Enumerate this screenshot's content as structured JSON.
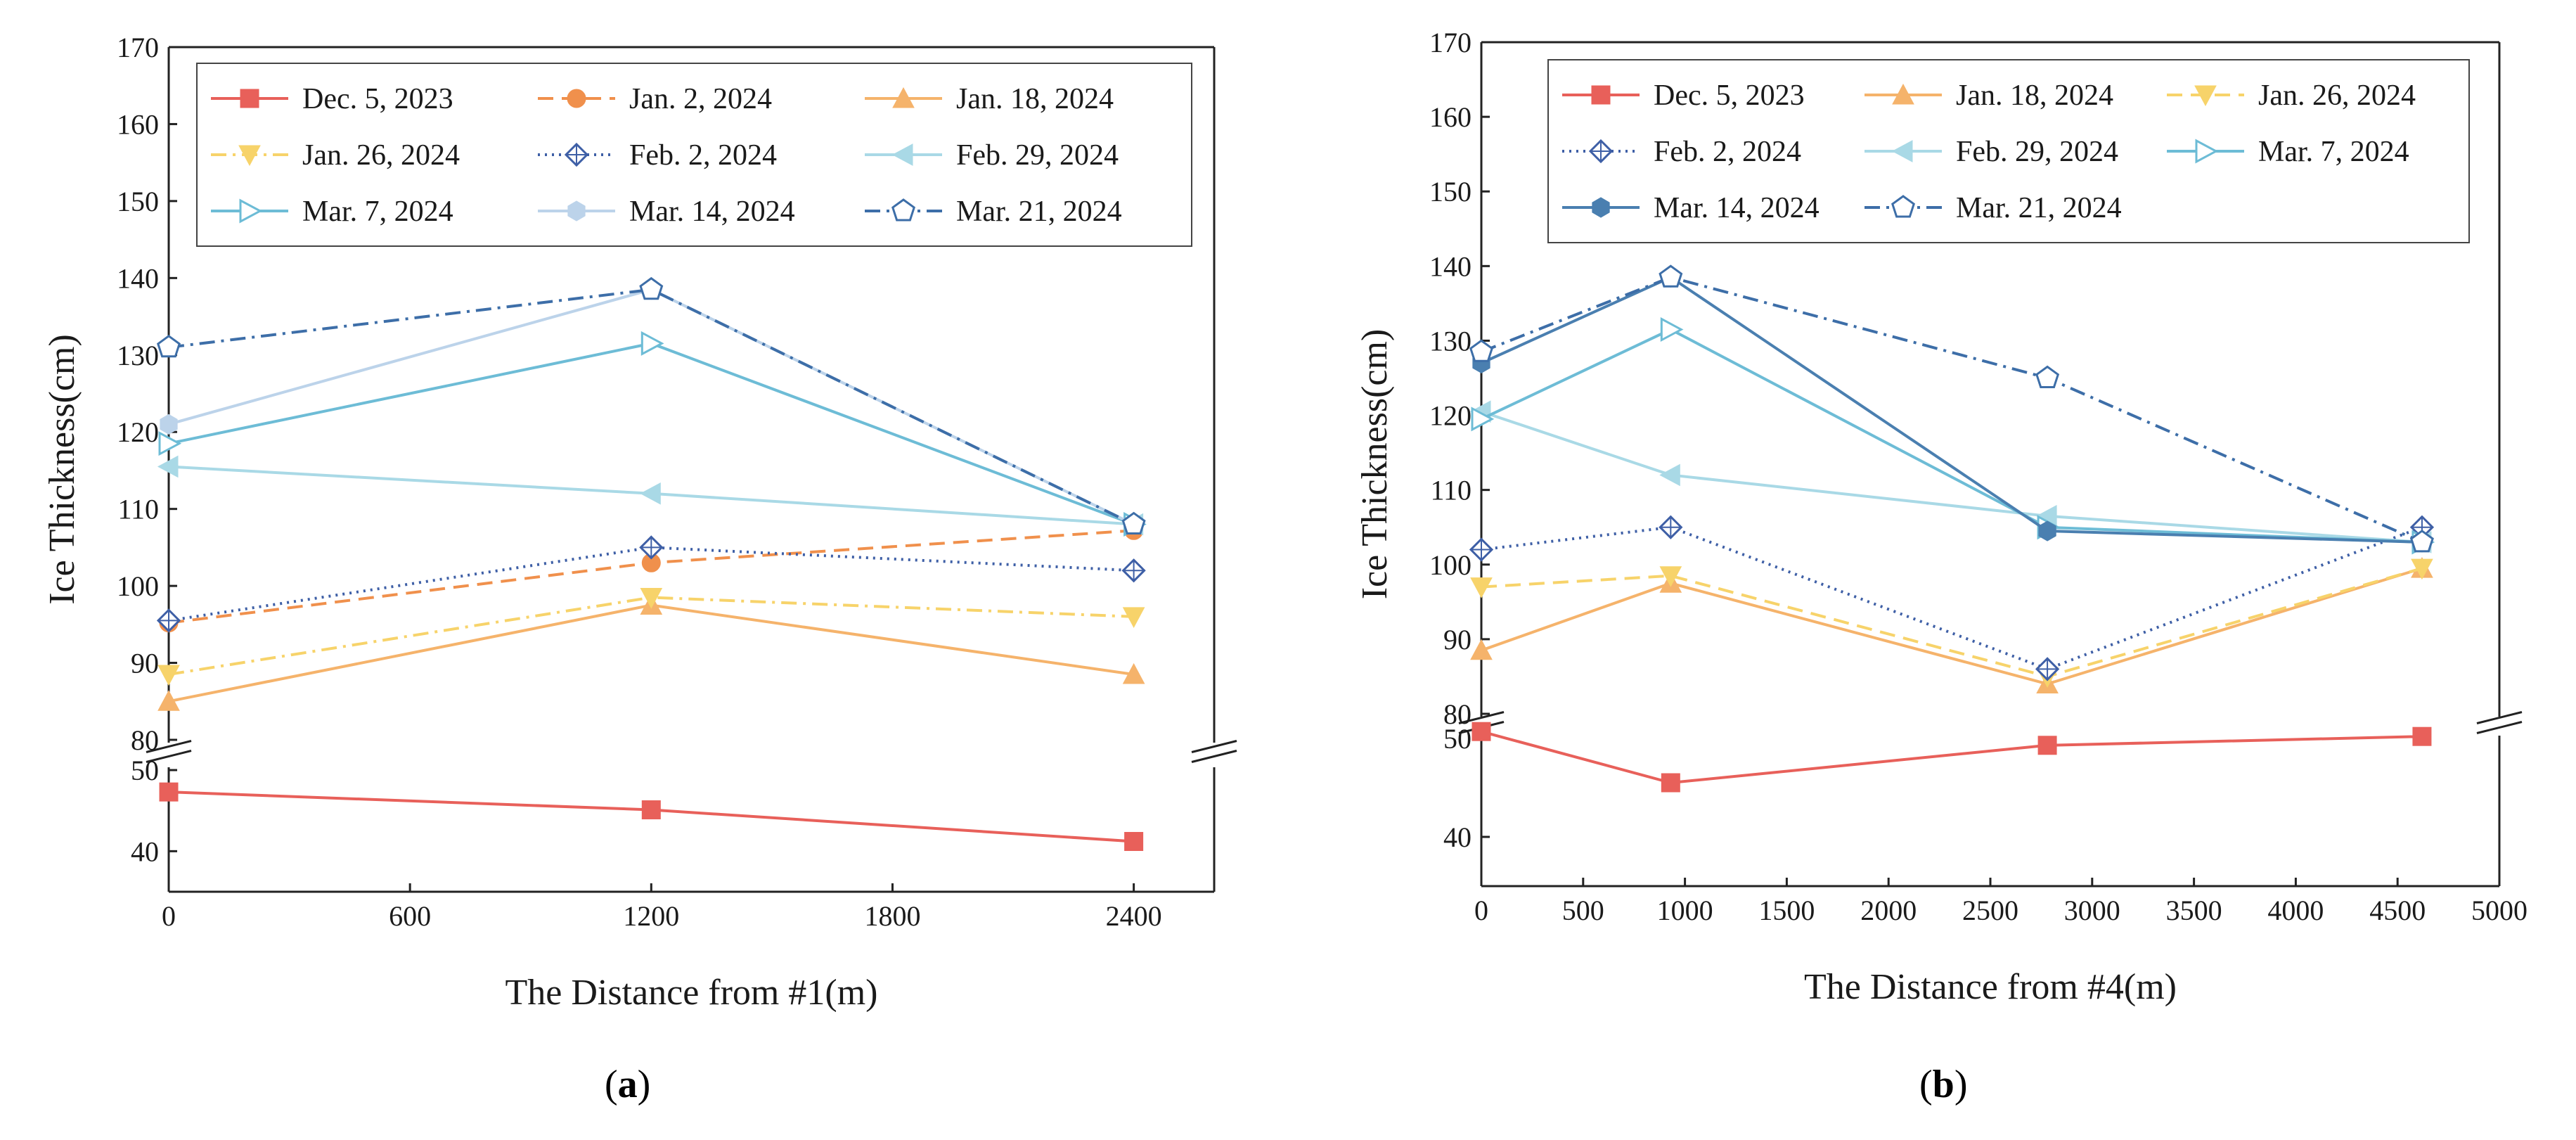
{
  "figure": {
    "label_a": "a",
    "label_b": "b"
  },
  "chart_data": [
    {
      "id": "a",
      "type": "line",
      "xlabel": "The Distance from #1(m)",
      "ylabel": "Ice Thickness(cm)",
      "xticks": [
        0,
        600,
        1200,
        1800,
        2400
      ],
      "xlim": [
        0,
        2600
      ],
      "ylim_upper": [
        80,
        170
      ],
      "ylim_lower": [
        35,
        50
      ],
      "yticks_upper": [
        80,
        90,
        100,
        110,
        120,
        130,
        140,
        150,
        160,
        170
      ],
      "yticks_lower": [
        40,
        50
      ],
      "axis_break": true,
      "legend_cols": 3,
      "series": [
        {
          "name": "Dec. 5, 2023",
          "color": "#e8605a",
          "marker": "square",
          "dash": "solid",
          "x": [
            0,
            1200,
            2400
          ],
          "y": [
            47.3,
            45.1,
            41.2
          ]
        },
        {
          "name": "Jan. 2, 2024",
          "color": "#f0904c",
          "marker": "circle",
          "dash": "dash",
          "x": [
            0,
            1200,
            2400
          ],
          "y": [
            95.2,
            103,
            107.2
          ]
        },
        {
          "name": "Jan. 18, 2024",
          "color": "#f5b36b",
          "marker": "triangle-up",
          "dash": "solid",
          "x": [
            0,
            1200,
            2400
          ],
          "y": [
            85,
            97.5,
            88.5
          ]
        },
        {
          "name": "Jan. 26, 2024",
          "color": "#f7d36a",
          "marker": "triangle-down",
          "dash": "dashdot",
          "x": [
            0,
            1200,
            2400
          ],
          "y": [
            88.5,
            98.5,
            96
          ]
        },
        {
          "name": "Feb. 2, 2024",
          "color": "#3e5fa6",
          "marker": "diamond-open",
          "dash": "dot",
          "x": [
            0,
            1200,
            2400
          ],
          "y": [
            95.5,
            105,
            102
          ]
        },
        {
          "name": "Feb. 29, 2024",
          "color": "#a9d9e6",
          "marker": "triangle-left",
          "dash": "solid",
          "x": [
            0,
            1200,
            2400
          ],
          "y": [
            115.5,
            112,
            108
          ]
        },
        {
          "name": "Mar. 7, 2024",
          "color": "#6dbcd6",
          "marker": "triangle-right-open",
          "dash": "solid",
          "x": [
            0,
            1200,
            2400
          ],
          "y": [
            118.5,
            131.5,
            108
          ]
        },
        {
          "name": "Mar. 14, 2024",
          "color": "#bcd3ea",
          "marker": "hexagon",
          "dash": "solid",
          "x": [
            0,
            1200,
            2400
          ],
          "y": [
            121,
            138.5,
            108
          ]
        },
        {
          "name": "Mar. 21, 2024",
          "color": "#3d6ea8",
          "marker": "pentagon-open",
          "dash": "dashdot",
          "x": [
            0,
            1200,
            2400
          ],
          "y": [
            131,
            138.5,
            108
          ]
        }
      ]
    },
    {
      "id": "b",
      "type": "line",
      "xlabel": "The Distance from #4(m)",
      "ylabel": "Ice Thickness(cm)",
      "xticks": [
        0,
        500,
        1000,
        1500,
        2000,
        2500,
        3000,
        3500,
        4000,
        4500,
        5000
      ],
      "xlim": [
        0,
        5000
      ],
      "ylim_upper": [
        80,
        170
      ],
      "ylim_lower": [
        35,
        50
      ],
      "yticks_upper": [
        80,
        90,
        100,
        110,
        120,
        130,
        140,
        150,
        160,
        170
      ],
      "yticks_lower": [
        40,
        50
      ],
      "axis_break": true,
      "legend_cols": 3,
      "series": [
        {
          "name": "Dec. 5, 2023",
          "color": "#e8605a",
          "marker": "square",
          "dash": "solid",
          "x": [
            0,
            930,
            2780,
            4620
          ],
          "y": [
            50.7,
            45.5,
            49.3,
            50.2
          ]
        },
        {
          "name": "Jan. 18, 2024",
          "color": "#f5b36b",
          "marker": "triangle-up",
          "dash": "solid",
          "x": [
            0,
            930,
            2780,
            4620
          ],
          "y": [
            88.5,
            97.5,
            84,
            99.5
          ]
        },
        {
          "name": "Jan. 26, 2024",
          "color": "#f7d36a",
          "marker": "triangle-down",
          "dash": "dash",
          "x": [
            0,
            930,
            2780,
            4620
          ],
          "y": [
            97,
            98.5,
            85,
            99.5
          ]
        },
        {
          "name": "Feb. 2, 2024",
          "color": "#3e5fa6",
          "marker": "diamond-open",
          "dash": "dot",
          "x": [
            0,
            930,
            2780,
            4620
          ],
          "y": [
            102,
            105,
            86,
            105
          ]
        },
        {
          "name": "Feb. 29, 2024",
          "color": "#a9d9e6",
          "marker": "triangle-left",
          "dash": "solid",
          "x": [
            0,
            930,
            2780,
            4620
          ],
          "y": [
            120.5,
            112,
            106.5,
            103
          ]
        },
        {
          "name": "Mar. 7, 2024",
          "color": "#6dbcd6",
          "marker": "triangle-right-open",
          "dash": "solid",
          "x": [
            0,
            930,
            2780,
            4620
          ],
          "y": [
            119.5,
            131.5,
            105,
            103
          ]
        },
        {
          "name": "Mar. 14, 2024",
          "color": "#4a7fb0",
          "marker": "hexagon",
          "dash": "solid",
          "x": [
            0,
            930,
            2780,
            4620
          ],
          "y": [
            127,
            138.5,
            104.5,
            103
          ]
        },
        {
          "name": "Mar. 21, 2024",
          "color": "#3d6ea8",
          "marker": "pentagon-open",
          "dash": "dashdot",
          "x": [
            0,
            930,
            2780,
            4620
          ],
          "y": [
            128.5,
            138.5,
            125,
            103
          ]
        }
      ]
    }
  ]
}
